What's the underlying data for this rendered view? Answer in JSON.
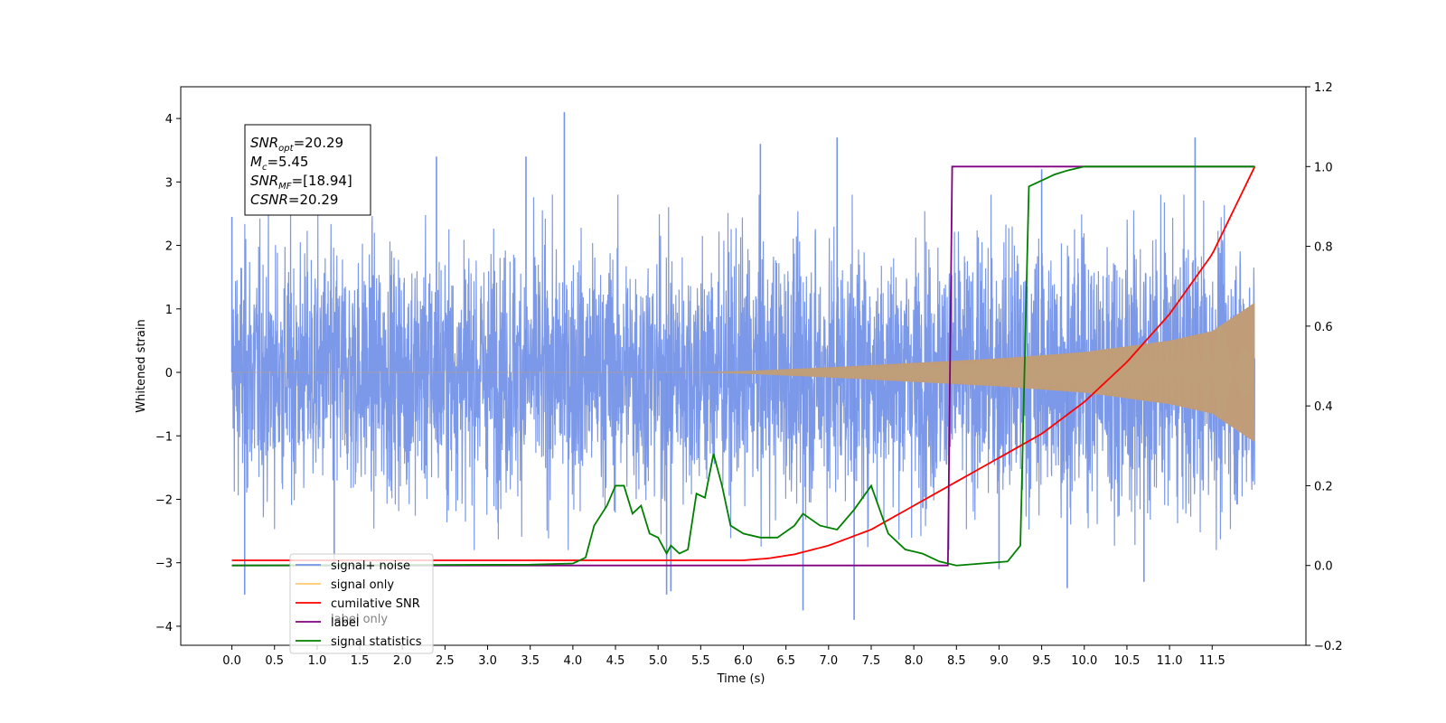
{
  "chart_data": {
    "type": "line",
    "title": "",
    "xlabel": "Time (s)",
    "ylabel": "Whitened strain",
    "y2label": "",
    "xlim": [
      -0.6,
      12.6
    ],
    "ylim": [
      -4.3,
      4.5
    ],
    "y2lim": [
      -0.2,
      1.2
    ],
    "x_ticks": [
      0.0,
      0.5,
      1.0,
      1.5,
      2.0,
      2.5,
      3.0,
      3.5,
      4.0,
      4.5,
      5.0,
      5.5,
      6.0,
      6.5,
      7.0,
      7.5,
      8.0,
      8.5,
      9.0,
      9.5,
      10.0,
      10.5,
      11.0,
      11.5
    ],
    "x_tick_labels": [
      "0.0",
      "0.5",
      "1.0",
      "1.5",
      "2.0",
      "2.5",
      "3.0",
      "3.5",
      "4.0",
      "4.5",
      "5.0",
      "5.5",
      "6.0",
      "6.5",
      "7.0",
      "7.5",
      "8.0",
      "8.5",
      "9.0",
      "9.5",
      "10.0",
      "10.5",
      "11.0",
      "11.5"
    ],
    "y_ticks": [
      -4,
      -3,
      -2,
      -1,
      0,
      1,
      2,
      3,
      4
    ],
    "y_tick_labels": [
      "−4",
      "−3",
      "−2",
      "−1",
      "0",
      "1",
      "2",
      "3",
      "4"
    ],
    "y2_ticks": [
      -0.2,
      0.0,
      0.2,
      0.4,
      0.6,
      0.8,
      1.0,
      1.2
    ],
    "y2_tick_labels": [
      "−0.2",
      "0.0",
      "0.2",
      "0.4",
      "0.6",
      "0.8",
      "1.0",
      "1.2"
    ],
    "grid": false,
    "legend_position": "lower-left",
    "legend": [
      {
        "label": "signal+ noise",
        "color": "#7593e8"
      },
      {
        "label": "signal only",
        "color": "#ffc870"
      },
      {
        "label": "cumilative SNR",
        "color": "#ff0000"
      },
      {
        "label": "label",
        "color": "#800080"
      },
      {
        "label": "signal statistics",
        "color": "#008000"
      }
    ],
    "hidden_legend_ghost_text": "label only",
    "annotation_box": {
      "lines": [
        {
          "symbol": "SNR",
          "sub": "opt",
          "value": "=20.29"
        },
        {
          "symbol": "M",
          "sub": "c",
          "value": "=5.45"
        },
        {
          "symbol": "SNR",
          "sub": "MF",
          "value": "=[18.94]"
        },
        {
          "symbol": "CSNR",
          "sub": "",
          "value": "=20.29"
        }
      ]
    },
    "series": [
      {
        "name": "signal+ noise",
        "axis": "left",
        "color": "#7593e8",
        "description": "whitened noisy strain, roughly within [-2.5, 2.5] with spikes up to about 4.1 and down to about -3.9, over t = 0 to 12.0 s",
        "envelope_t": [
          0.0,
          4.0,
          6.0,
          8.0,
          9.0,
          10.0,
          11.0,
          12.0
        ],
        "envelope_amp": [
          2.2,
          2.2,
          2.25,
          2.3,
          2.35,
          2.4,
          2.45,
          2.5
        ],
        "spikes": [
          [
            0.0,
            2.45
          ],
          [
            0.15,
            -3.5
          ],
          [
            3.9,
            4.1
          ],
          [
            2.4,
            3.4
          ],
          [
            3.45,
            3.4
          ],
          [
            6.2,
            3.6
          ],
          [
            7.1,
            3.7
          ],
          [
            6.7,
            -3.75
          ],
          [
            7.3,
            -3.9
          ],
          [
            5.1,
            -3.5
          ],
          [
            5.15,
            -3.45
          ],
          [
            11.3,
            3.7
          ],
          [
            9.5,
            3.2
          ],
          [
            9.8,
            -3.4
          ],
          [
            10.7,
            -3.3
          ],
          [
            1.2,
            -3.1
          ],
          [
            9.0,
            -3.1
          ]
        ]
      },
      {
        "name": "signal only",
        "axis": "left",
        "color": "#ffc870",
        "description": "chirp signal with amplitude near zero until about 6 s, growing to about 1.1 at 12.0 s",
        "envelope_t": [
          0.0,
          5.5,
          6.0,
          7.0,
          8.0,
          9.0,
          10.0,
          11.0,
          11.5,
          12.0
        ],
        "envelope_amp": [
          0.0,
          0.0,
          0.02,
          0.08,
          0.15,
          0.22,
          0.32,
          0.5,
          0.65,
          1.1
        ]
      },
      {
        "name": "cumilative SNR",
        "axis": "right",
        "x": [
          0.0,
          6.0,
          6.3,
          6.6,
          7.0,
          7.5,
          8.0,
          8.5,
          9.0,
          9.5,
          10.0,
          10.5,
          11.0,
          11.5,
          12.0
        ],
        "y": [
          0.013,
          0.013,
          0.018,
          0.028,
          0.05,
          0.09,
          0.15,
          0.21,
          0.27,
          0.33,
          0.41,
          0.51,
          0.63,
          0.78,
          1.0
        ]
      },
      {
        "name": "label",
        "axis": "right",
        "x": [
          0.0,
          8.4,
          8.45,
          12.0
        ],
        "y": [
          0.0,
          0.0,
          1.0,
          1.0
        ]
      },
      {
        "name": "signal statistics",
        "axis": "right",
        "x": [
          0.0,
          3.5,
          4.0,
          4.15,
          4.25,
          4.4,
          4.5,
          4.6,
          4.7,
          4.8,
          4.9,
          5.0,
          5.1,
          5.15,
          5.25,
          5.35,
          5.45,
          5.55,
          5.65,
          5.75,
          5.85,
          6.0,
          6.2,
          6.4,
          6.6,
          6.7,
          6.9,
          7.1,
          7.3,
          7.5,
          7.7,
          7.9,
          8.1,
          8.3,
          8.5,
          8.8,
          9.1,
          9.25,
          9.35,
          9.45,
          9.55,
          9.65,
          9.8,
          10.0,
          12.0
        ],
        "y": [
          0.0,
          0.002,
          0.005,
          0.02,
          0.1,
          0.15,
          0.2,
          0.2,
          0.13,
          0.15,
          0.08,
          0.07,
          0.03,
          0.05,
          0.03,
          0.04,
          0.18,
          0.17,
          0.28,
          0.2,
          0.1,
          0.08,
          0.07,
          0.07,
          0.1,
          0.13,
          0.1,
          0.09,
          0.14,
          0.2,
          0.08,
          0.04,
          0.03,
          0.01,
          0.0,
          0.005,
          0.01,
          0.05,
          0.95,
          0.96,
          0.97,
          0.98,
          0.99,
          1.0,
          1.0
        ]
      }
    ]
  }
}
